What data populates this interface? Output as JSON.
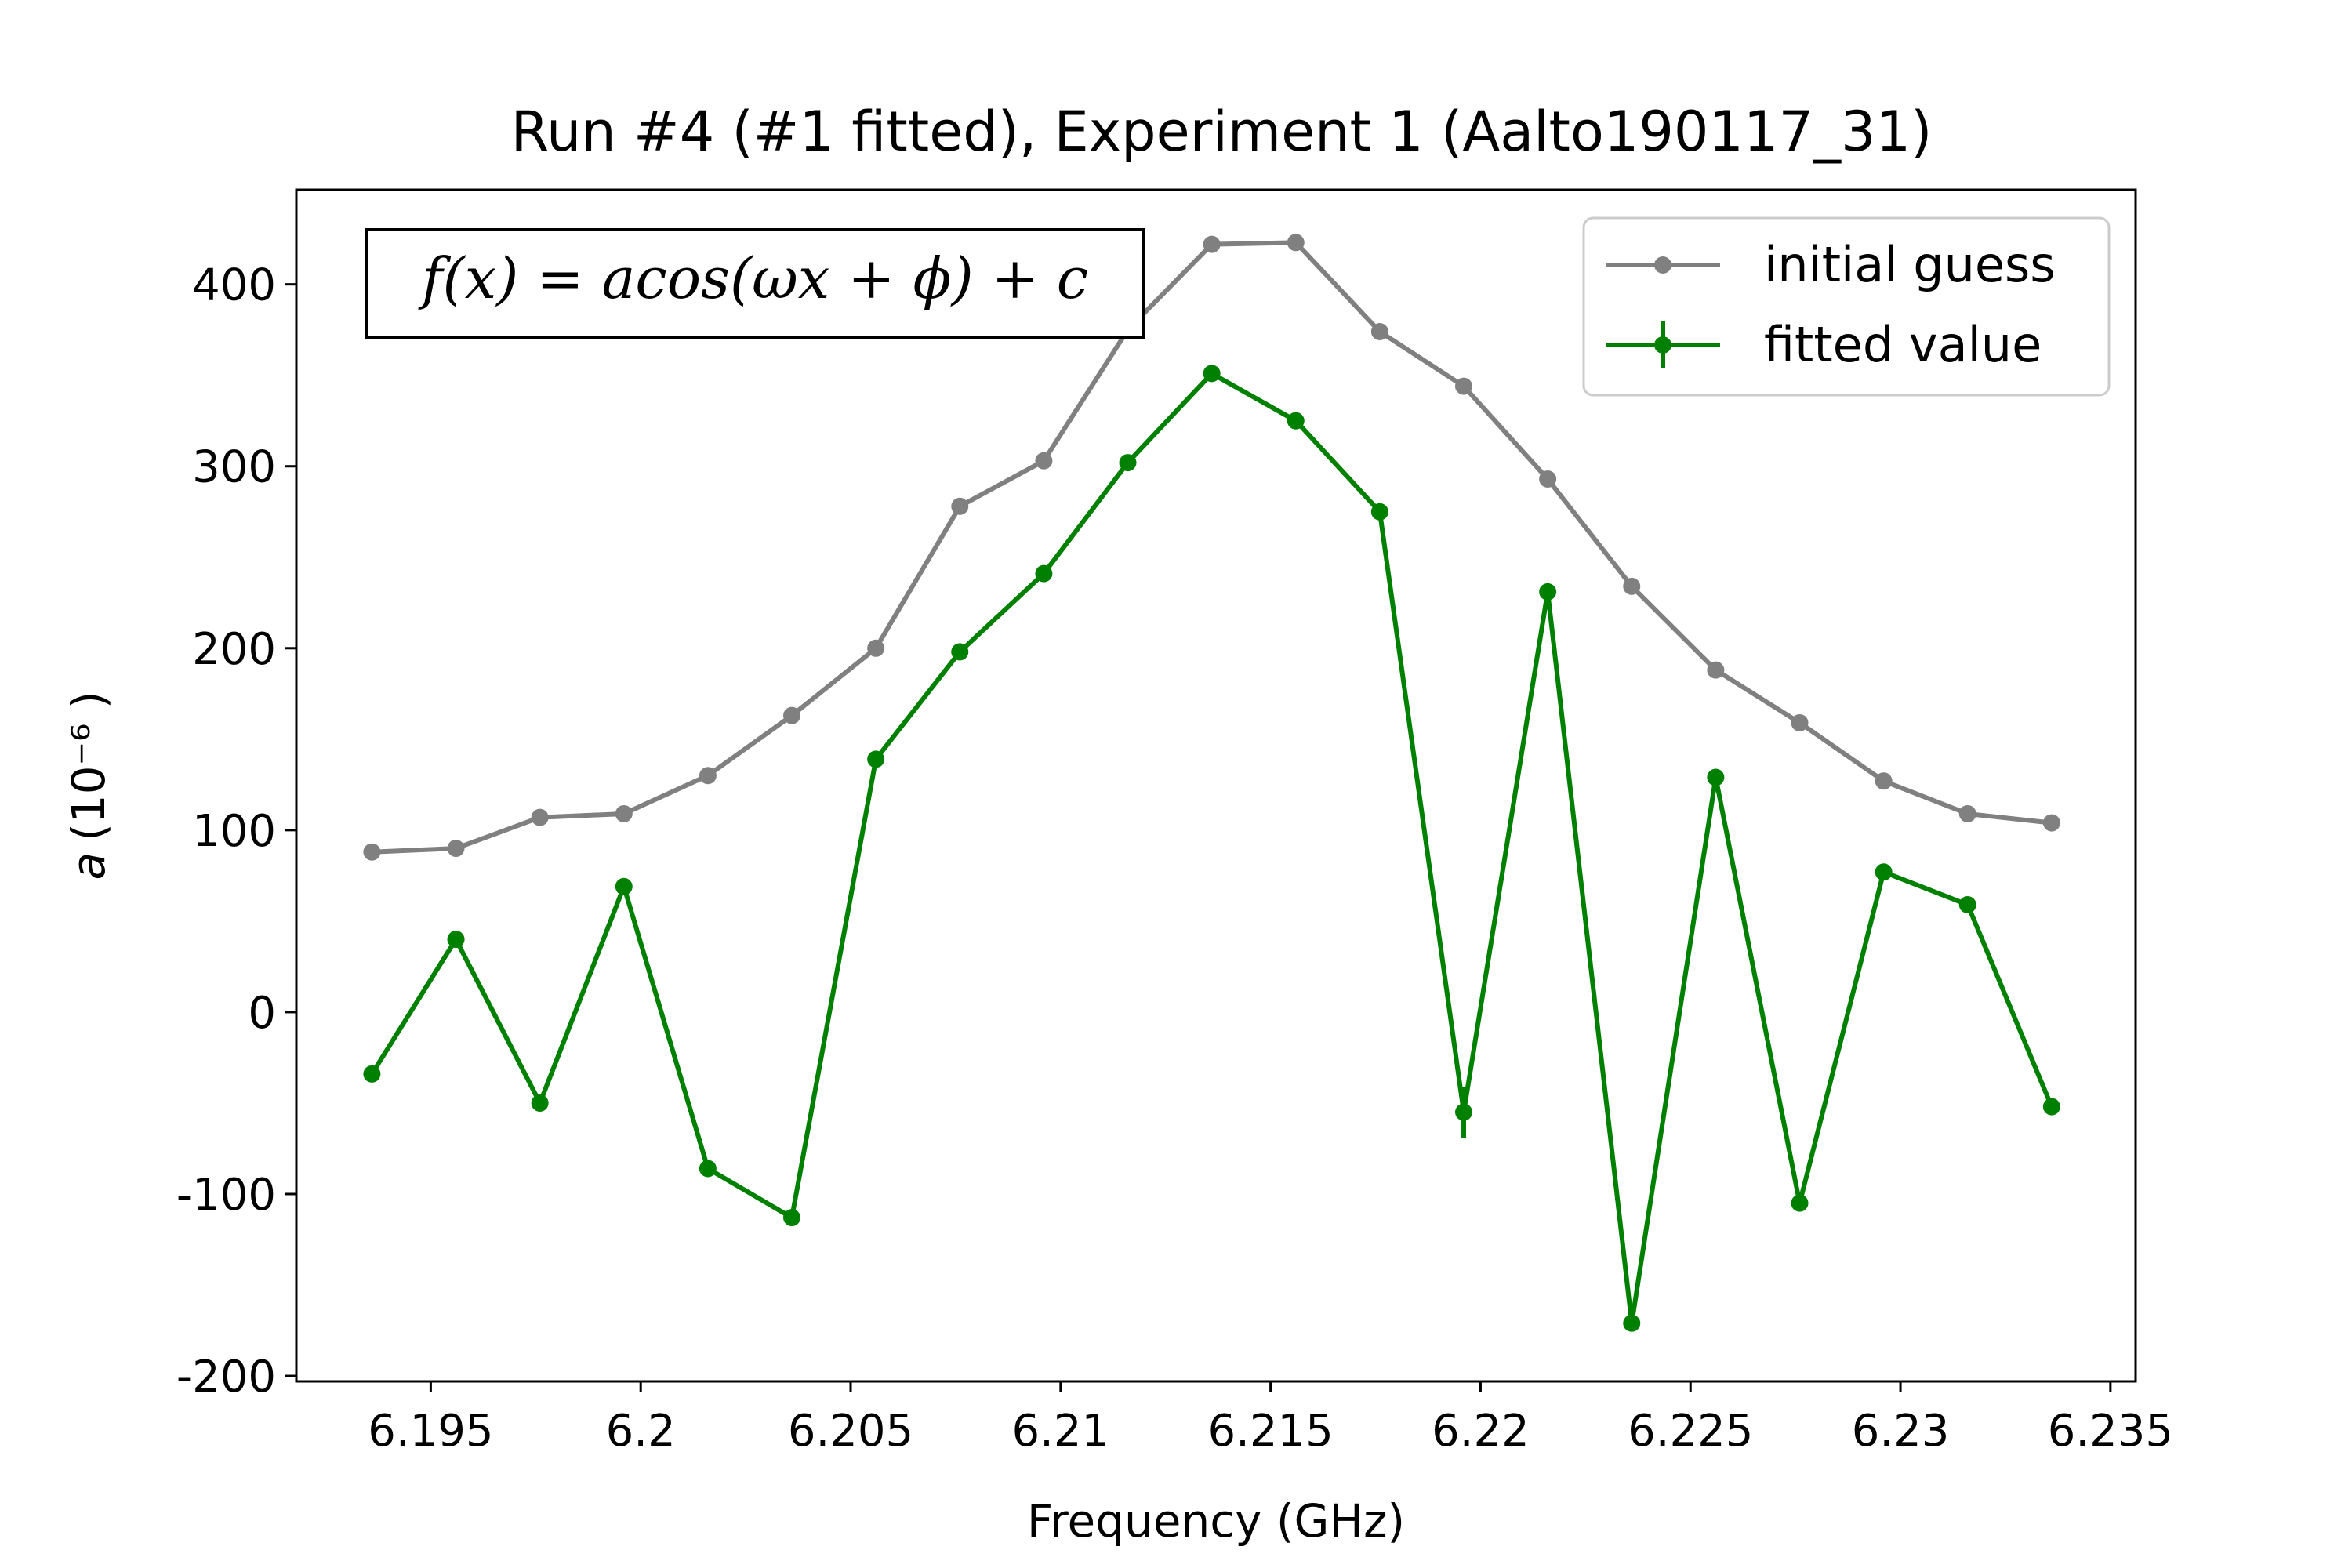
{
  "chart_data": {
    "type": "line",
    "title": "Run #4 (#1 fitted), Experiment 1 (Aalto190117_31)",
    "xlabel": "Frequency (GHz)",
    "ylabel_symbol": "a",
    "ylabel_unit": "(10⁻⁶ )",
    "annotation": "f(x) = acos(ωx + ϕ) + c",
    "xlim": [
      6.1918,
      6.2356
    ],
    "ylim": [
      -203,
      452
    ],
    "xticks": [
      6.195,
      6.2,
      6.205,
      6.21,
      6.215,
      6.22,
      6.225,
      6.23,
      6.235
    ],
    "xtick_labels": [
      "6.195",
      "6.2",
      "6.205",
      "6.21",
      "6.215",
      "6.22",
      "6.225",
      "6.23",
      "6.235"
    ],
    "yticks": [
      -200,
      -100,
      0,
      100,
      200,
      300,
      400
    ],
    "ytick_labels": [
      "-200",
      "-100",
      "0",
      "100",
      "200",
      "300",
      "400"
    ],
    "legend_position": "top-right",
    "grid": false,
    "x": [
      6.1936,
      6.1956,
      6.1976,
      6.1996,
      6.2016,
      6.2036,
      6.2056,
      6.2076,
      6.2096,
      6.2116,
      6.2136,
      6.2156,
      6.2176,
      6.2196,
      6.2216,
      6.2236,
      6.2256,
      6.2276,
      6.2296,
      6.2316,
      6.2336
    ],
    "series": [
      {
        "name": "initial guess",
        "color": "#808080",
        "values": [
          88,
          90,
          107,
          109,
          130,
          163,
          200,
          278,
          303,
          375,
          422,
          423,
          374,
          344,
          293,
          234,
          188,
          159,
          127,
          109,
          104
        ],
        "errors": null
      },
      {
        "name": "fitted value",
        "color": "#008000",
        "values": [
          -34,
          40,
          -50,
          69,
          -86,
          -113,
          139,
          198,
          241,
          302,
          351,
          325,
          275,
          -55,
          231,
          -171,
          129,
          -105,
          77,
          59,
          -52
        ],
        "errors": [
          0,
          0,
          0,
          0,
          0,
          0,
          0,
          0,
          0,
          0,
          0,
          0,
          0,
          14,
          0,
          0,
          0,
          0,
          0,
          0,
          0
        ]
      }
    ]
  }
}
